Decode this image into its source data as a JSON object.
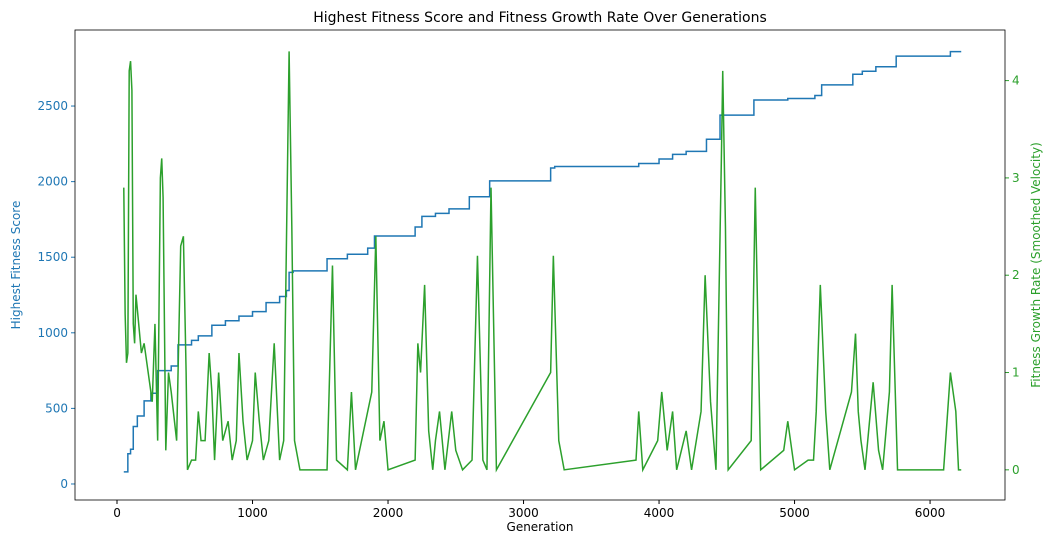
{
  "chart_data": {
    "type": "line",
    "title": "Highest Fitness Score and Fitness Growth Rate Over Generations",
    "xlabel": "Generation",
    "ylabel": "Highest Fitness Score",
    "y2label": "Fitness Growth Rate (Smoothed Velocity)",
    "xlim": [
      -310,
      6553
    ],
    "ylim": [
      -106,
      3003
    ],
    "y2lim": [
      -0.31,
      4.52
    ],
    "xticks": [
      0,
      1000,
      2000,
      3000,
      4000,
      5000,
      6000
    ],
    "yticks": [
      0,
      500,
      1000,
      1500,
      2000,
      2500
    ],
    "y2ticks": [
      0,
      1,
      2,
      3,
      4
    ],
    "ylabel_color": "#1f77b4",
    "y2label_color": "#2ca02c",
    "series": [
      {
        "color": "#1f77b4",
        "axis": "y",
        "drawstyle": "steps-post",
        "x": [
          50,
          80,
          100,
          120,
          150,
          200,
          250,
          300,
          400,
          450,
          550,
          600,
          700,
          800,
          900,
          1000,
          1100,
          1200,
          1250,
          1270,
          1300,
          1550,
          1700,
          1850,
          1900,
          2200,
          2250,
          2350,
          2450,
          2600,
          2750,
          3200,
          3230,
          3850,
          4000,
          4100,
          4200,
          4350,
          4450,
          4700,
          4950,
          5150,
          5200,
          5430,
          5500,
          5600,
          5750,
          6150,
          6230
        ],
        "values": [
          80,
          200,
          230,
          380,
          450,
          550,
          600,
          750,
          780,
          920,
          950,
          980,
          1050,
          1080,
          1110,
          1140,
          1200,
          1240,
          1280,
          1400,
          1410,
          1490,
          1520,
          1560,
          1640,
          1700,
          1770,
          1790,
          1820,
          1900,
          2005,
          2090,
          2100,
          2120,
          2150,
          2180,
          2200,
          2280,
          2440,
          2540,
          2550,
          2570,
          2640,
          2710,
          2730,
          2760,
          2830,
          2860,
          2860
        ]
      },
      {
        "color": "#2ca02c",
        "axis": "y2",
        "x": [
          50,
          60,
          70,
          80,
          90,
          100,
          110,
          120,
          130,
          140,
          160,
          180,
          200,
          230,
          260,
          280,
          300,
          320,
          330,
          340,
          360,
          380,
          400,
          440,
          470,
          490,
          510,
          520,
          550,
          580,
          600,
          620,
          650,
          680,
          700,
          720,
          750,
          780,
          820,
          850,
          880,
          900,
          930,
          960,
          1000,
          1020,
          1050,
          1080,
          1120,
          1160,
          1200,
          1230,
          1270,
          1290,
          1310,
          1350,
          1550,
          1590,
          1620,
          1700,
          1730,
          1760,
          1880,
          1910,
          1940,
          1970,
          2000,
          2200,
          2220,
          2240,
          2270,
          2300,
          2330,
          2350,
          2380,
          2420,
          2470,
          2500,
          2550,
          2620,
          2660,
          2700,
          2730,
          2760,
          2800,
          3200,
          3220,
          3260,
          3300,
          3830,
          3850,
          3880,
          3990,
          4020,
          4060,
          4100,
          4130,
          4200,
          4240,
          4310,
          4340,
          4380,
          4420,
          4460,
          4470,
          4490,
          4510,
          4680,
          4710,
          4750,
          4920,
          4950,
          5000,
          5100,
          5140,
          5160,
          5190,
          5230,
          5260,
          5420,
          5450,
          5470,
          5490,
          5520,
          5580,
          5620,
          5650,
          5700,
          5720,
          5760,
          6100,
          6150,
          6190,
          6210,
          6230
        ],
        "values": [
          2.9,
          1.6,
          1.1,
          1.2,
          4.1,
          4.2,
          3.9,
          1.5,
          1.3,
          1.8,
          1.5,
          1.2,
          1.3,
          1.0,
          0.7,
          1.5,
          0.3,
          3.0,
          3.2,
          2.8,
          0.2,
          1.0,
          0.8,
          0.3,
          2.3,
          2.4,
          1.0,
          0.0,
          0.1,
          0.1,
          0.6,
          0.3,
          0.3,
          1.2,
          0.8,
          0.1,
          1.0,
          0.3,
          0.5,
          0.1,
          0.3,
          1.2,
          0.5,
          0.1,
          0.3,
          1.0,
          0.5,
          0.1,
          0.3,
          1.3,
          0.1,
          0.3,
          4.3,
          2.5,
          0.3,
          0.0,
          0.0,
          2.1,
          0.1,
          0.0,
          0.8,
          0.0,
          0.8,
          2.4,
          0.3,
          0.5,
          0.0,
          0.1,
          1.3,
          1.0,
          1.9,
          0.4,
          0.0,
          0.3,
          0.6,
          0.0,
          0.6,
          0.2,
          0.0,
          0.1,
          2.2,
          0.1,
          0.0,
          2.9,
          0.0,
          1.0,
          2.2,
          0.3,
          0.0,
          0.1,
          0.6,
          0.0,
          0.3,
          0.8,
          0.2,
          0.6,
          0.0,
          0.4,
          0.0,
          0.6,
          2.0,
          0.7,
          0.0,
          3.2,
          4.1,
          2.5,
          0.0,
          0.3,
          2.9,
          0.0,
          0.2,
          0.5,
          0.0,
          0.1,
          0.1,
          0.6,
          1.9,
          0.6,
          0.0,
          0.8,
          1.4,
          0.6,
          0.3,
          0.0,
          0.9,
          0.2,
          0.0,
          0.8,
          1.9,
          0.0,
          0.0,
          1.0,
          0.6,
          0.0,
          0.0
        ]
      }
    ]
  }
}
